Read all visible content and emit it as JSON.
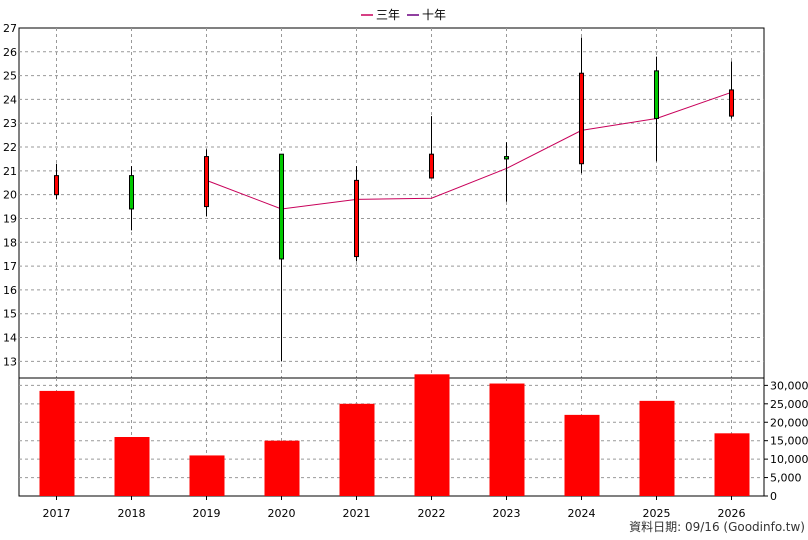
{
  "chart_data": {
    "type": "candlestick",
    "legend": {
      "items": [
        {
          "label": "三年",
          "color": "#c8005a"
        },
        {
          "label": "十年",
          "color": "#6a0080"
        }
      ],
      "placement": "top-center"
    },
    "categories": [
      "2017",
      "2018",
      "2019",
      "2020",
      "2021",
      "2022",
      "2023",
      "2024",
      "2025",
      "2026"
    ],
    "price_axis": {
      "ticks": [
        "13",
        "14",
        "15",
        "16",
        "17",
        "18",
        "19",
        "20",
        "21",
        "22",
        "23",
        "24",
        "25",
        "26",
        "27"
      ],
      "ylim": [
        12.3,
        27
      ]
    },
    "volume_axis": {
      "ticks": [
        "0",
        "5,000",
        "10,000",
        "15,000",
        "20,000",
        "25,000",
        "30,000"
      ],
      "ylim": [
        0,
        32000
      ]
    },
    "candles": [
      {
        "year": "2017",
        "open": 20.0,
        "close": 20.8,
        "high": 21.3,
        "low": 19.8,
        "color": "#ff0000"
      },
      {
        "year": "2018",
        "open": 20.8,
        "close": 19.4,
        "high": 21.2,
        "low": 18.5,
        "color": "#00c800"
      },
      {
        "year": "2019",
        "open": 19.5,
        "close": 21.6,
        "high": 21.9,
        "low": 19.1,
        "color": "#ff0000"
      },
      {
        "year": "2020",
        "open": 21.7,
        "close": 17.3,
        "high": 21.7,
        "low": 13.0,
        "color": "#00c800"
      },
      {
        "year": "2021",
        "open": 17.4,
        "close": 20.6,
        "high": 21.2,
        "low": 17.2,
        "color": "#ff0000"
      },
      {
        "year": "2022",
        "open": 20.7,
        "close": 21.7,
        "high": 23.3,
        "low": 20.7,
        "color": "#ff0000"
      },
      {
        "year": "2023",
        "open": 21.6,
        "close": 21.5,
        "high": 22.2,
        "low": 19.7,
        "color": "#00c800"
      },
      {
        "year": "2024",
        "open": 21.3,
        "close": 25.1,
        "high": 26.6,
        "low": 20.9,
        "color": "#ff0000"
      },
      {
        "year": "2025",
        "open": 25.2,
        "close": 23.2,
        "high": 25.8,
        "low": 21.4,
        "color": "#00c800"
      },
      {
        "year": "2026",
        "open": 23.3,
        "close": 24.4,
        "high": 25.6,
        "low": 23.2,
        "color": "#ff0000"
      }
    ],
    "ma_three_year": {
      "name": "三年",
      "color": "#c8005a",
      "points": [
        {
          "year": "2019",
          "value": 20.6
        },
        {
          "year": "2020",
          "value": 19.4
        },
        {
          "year": "2021",
          "value": 19.8
        },
        {
          "year": "2022",
          "value": 19.85
        },
        {
          "year": "2023",
          "value": 21.1
        },
        {
          "year": "2024",
          "value": 22.7
        },
        {
          "year": "2025",
          "value": 23.2
        },
        {
          "year": "2026",
          "value": 24.3
        }
      ]
    },
    "volume": {
      "color": "#ff0000",
      "values": [
        28500,
        16000,
        11000,
        15000,
        25000,
        33000,
        30500,
        22000,
        25800,
        17000
      ]
    },
    "grid": true
  },
  "footer": {
    "text": "資料日期: 09/16  (Goodinfo.tw)"
  }
}
